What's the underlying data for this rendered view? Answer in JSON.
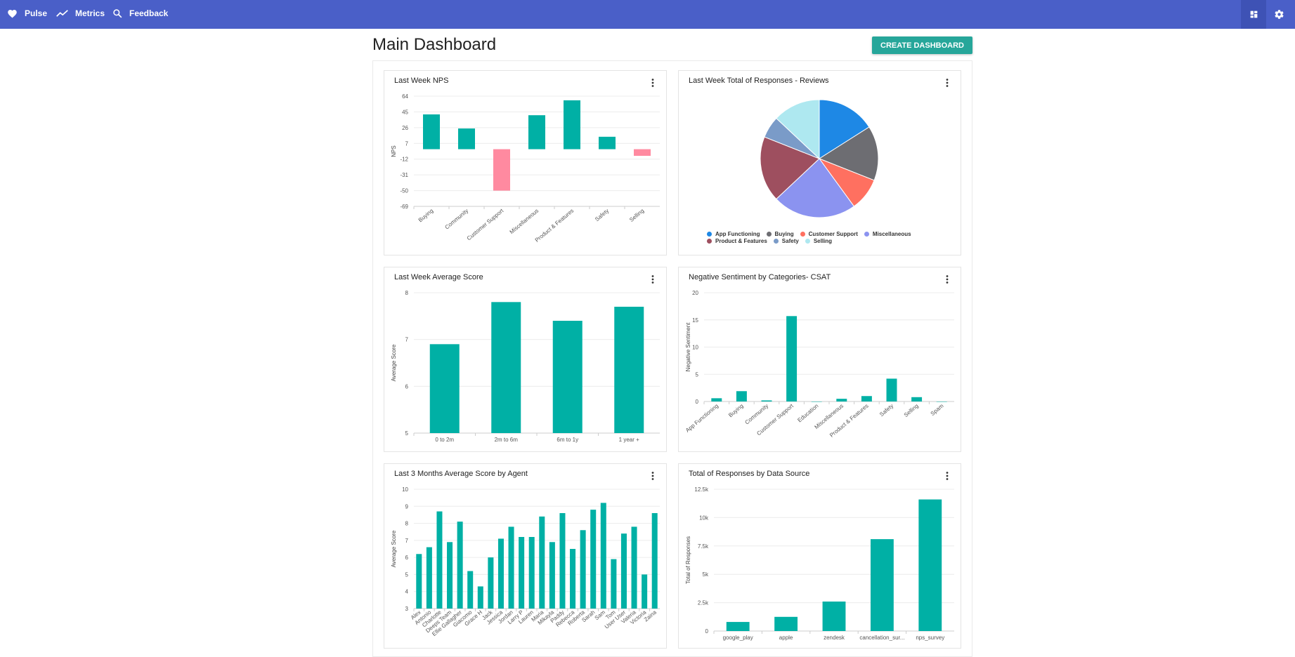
{
  "topbar": {
    "items": [
      {
        "label": "Pulse",
        "icon": "heart-icon"
      },
      {
        "label": "Metrics",
        "icon": "trend-icon"
      },
      {
        "label": "Feedback",
        "icon": "search-icon"
      }
    ],
    "right_icons": [
      "dashboard-icon",
      "gear-icon"
    ],
    "color": "#4a5fc8"
  },
  "page": {
    "title": "Main Dashboard",
    "create_button": "CREATE DASHBOARD"
  },
  "colors": {
    "teal": "#00b0a5",
    "pink": "#ff8aa0",
    "accent": "#26a69a"
  },
  "chart_data": [
    {
      "id": "nps",
      "title": "Last Week NPS",
      "type": "bar",
      "ylabel": "NPS",
      "ylim": [
        -69,
        64
      ],
      "yticks": [
        64,
        45,
        26,
        7,
        -12,
        -31,
        -50,
        -69
      ],
      "categories": [
        "Buying",
        "Community",
        "Customer Support",
        "Miscellaneous",
        "Product & Features",
        "Safety",
        "Selling"
      ],
      "values": [
        42,
        25,
        -50,
        41,
        59,
        15,
        -8
      ]
    },
    {
      "id": "reviews",
      "title": "Last Week Total of Responses - Reviews",
      "type": "pie",
      "slices": [
        {
          "label": "App Functioning",
          "value": 16,
          "color": "#1e88e5"
        },
        {
          "label": "Buying",
          "value": 15,
          "color": "#6d6d72"
        },
        {
          "label": "Customer Support",
          "value": 9,
          "color": "#ff7060"
        },
        {
          "label": "Miscellaneous",
          "value": 23,
          "color": "#8b93f0"
        },
        {
          "label": "Product & Features",
          "value": 18,
          "color": "#9e4f5f"
        },
        {
          "label": "Safety",
          "value": 6,
          "color": "#7a9bc8"
        },
        {
          "label": "Selling",
          "value": 13,
          "color": "#aee8f0"
        }
      ]
    },
    {
      "id": "avg_score",
      "title": "Last Week Average Score",
      "type": "bar",
      "ylabel": "Average Score",
      "ylim": [
        5,
        8
      ],
      "yticks": [
        8,
        7,
        6,
        5
      ],
      "categories": [
        "0 to 2m",
        "2m to 6m",
        "6m to 1y",
        "1 year +"
      ],
      "values": [
        6.9,
        7.8,
        7.4,
        7.7
      ]
    },
    {
      "id": "csat",
      "title": "Negative Sentiment by Categories- CSAT",
      "type": "bar",
      "ylabel": "Negative Sentiment",
      "ylim": [
        0,
        20
      ],
      "yticks": [
        20,
        15,
        10,
        5,
        0
      ],
      "categories": [
        "App Functioning",
        "Buying",
        "Community",
        "Customer Support",
        "Education",
        "Miscellaneous",
        "Product & Features",
        "Safety",
        "Selling",
        "Spam"
      ],
      "values": [
        0.6,
        1.9,
        0.2,
        15.7,
        0,
        0.5,
        1.0,
        4.2,
        0.8,
        0
      ]
    },
    {
      "id": "agents",
      "title": "Last 3 Months Average Score by Agent",
      "type": "bar",
      "ylabel": "Average Score",
      "ylim": [
        3,
        10
      ],
      "yticks": [
        10,
        9,
        8,
        7,
        6,
        5,
        4,
        3
      ],
      "categories": [
        "Alex",
        "Antonio",
        "Charlotte",
        "Deeps Team",
        "Ellie Gallagher",
        "Giacomo",
        "Grace H",
        "Jack",
        "Jessica",
        "Jordan",
        "Larry P",
        "Lauren",
        "Maria",
        "Mikayla",
        "Paddy",
        "Rebecca",
        "Roberta",
        "Sarah",
        "Sam",
        "Tom",
        "User User",
        "Valeria",
        "Victoria",
        "Zaina"
      ],
      "values": [
        6.2,
        6.6,
        8.7,
        6.9,
        8.1,
        5.2,
        4.3,
        6.0,
        7.1,
        7.8,
        7.2,
        7.2,
        8.4,
        6.9,
        8.6,
        6.5,
        7.6,
        8.8,
        9.2,
        5.9,
        7.4,
        7.8,
        5.0,
        8.6
      ]
    },
    {
      "id": "source",
      "title": "Total of Responses by Data Source",
      "type": "bar",
      "ylabel": "Total of Responses",
      "ylim": [
        0,
        12500
      ],
      "yticks": [
        "12.5k",
        "10k",
        "7.5k",
        "5k",
        "2.5k",
        "0"
      ],
      "categories": [
        "google_play",
        "apple",
        "zendesk",
        "cancellation_sur...",
        "nps_survey"
      ],
      "values": [
        800,
        1250,
        2600,
        8100,
        11600
      ]
    }
  ]
}
